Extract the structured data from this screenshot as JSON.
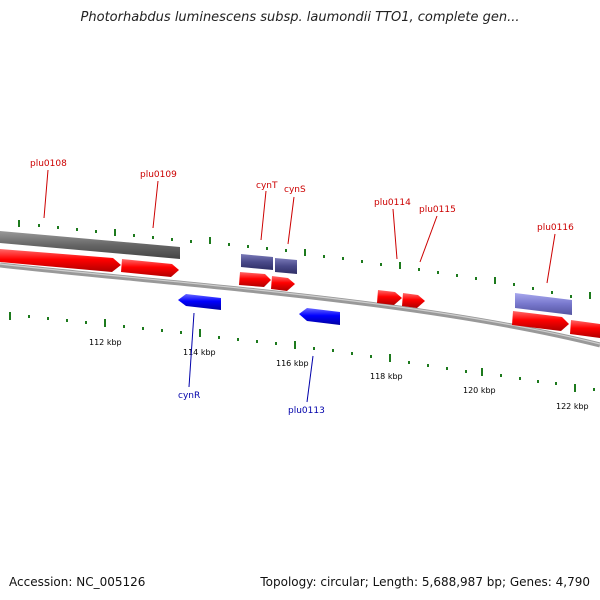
{
  "title": "Photorhabdus luminescens subsp. laumondii TTO1, complete gen...",
  "footer": {
    "accession": "Accession: NC_005126",
    "topology": "Topology: circular; Length: 5,688,987 bp; Genes: 4,790"
  },
  "colors": {
    "forward_gene": "#ff0000",
    "reverse_gene": "#0000ff",
    "other_feature": "#555599",
    "highlight_feature": "#7777cc",
    "backbone": "#888888",
    "tick": "#226622",
    "label_forward": "#cc0000",
    "label_reverse": "#0000aa"
  },
  "scale": {
    "unit": "kbp",
    "ticks": [
      {
        "kbp": 112,
        "label": "112 kbp"
      },
      {
        "kbp": 114,
        "label": "114 kbp"
      },
      {
        "kbp": 116,
        "label": "116 kbp"
      },
      {
        "kbp": 118,
        "label": "118 kbp"
      },
      {
        "kbp": 120,
        "label": "120 kbp"
      },
      {
        "kbp": 122,
        "label": "122 kbp"
      }
    ]
  },
  "forward_labels": [
    "plu0108",
    "plu0109",
    "cynT",
    "cynS",
    "plu0114",
    "plu0115",
    "plu0116"
  ],
  "reverse_labels": [
    "cynR",
    "plu0113"
  ]
}
